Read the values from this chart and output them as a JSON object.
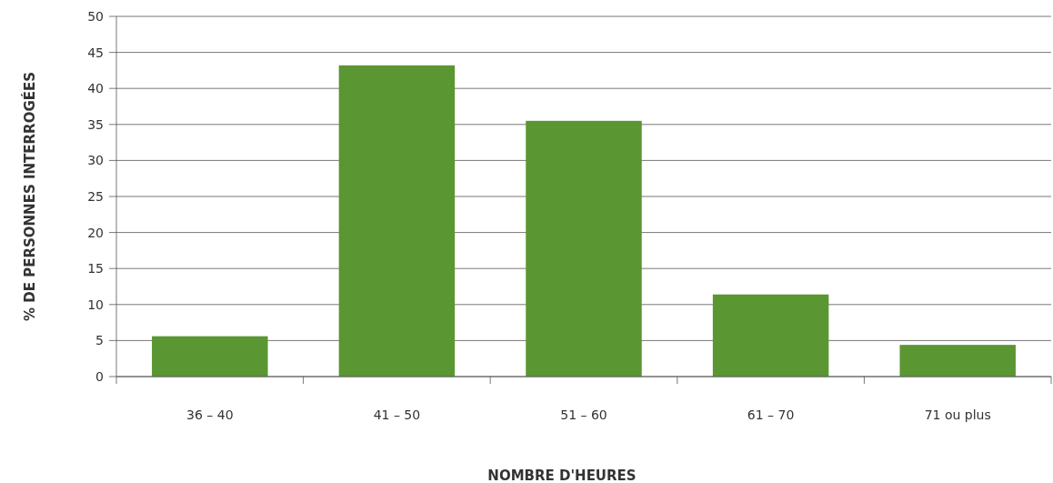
{
  "chart_data": {
    "type": "bar",
    "xlabel": "NOMBRE D'HEURES",
    "ylabel": "% DE PERSONNES INTERROGÉES",
    "categories": [
      "36 – 40",
      "41 – 50",
      "51 – 60",
      "61 – 70",
      "71 ou plus"
    ],
    "values": [
      5.6,
      43.2,
      35.5,
      11.4,
      4.4
    ],
    "color": "#5a9632",
    "ylim": [
      0,
      50
    ],
    "yticks": [
      0,
      5,
      10,
      15,
      20,
      25,
      30,
      35,
      40,
      45,
      50
    ],
    "grid": "y"
  }
}
